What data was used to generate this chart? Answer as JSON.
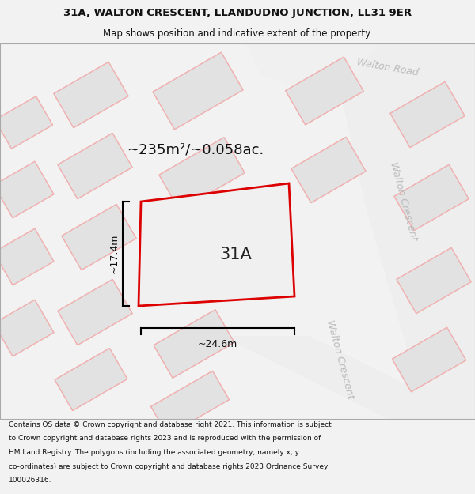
{
  "title_line1": "31A, WALTON CRESCENT, LLANDUDNO JUNCTION, LL31 9ER",
  "title_line2": "Map shows position and indicative extent of the property.",
  "footer_lines": [
    "Contains OS data © Crown copyright and database right 2021. This information is subject",
    "to Crown copyright and database rights 2023 and is reproduced with the permission of",
    "HM Land Registry. The polygons (including the associated geometry, namely x, y",
    "co-ordinates) are subject to Crown copyright and database rights 2023 Ordnance Survey",
    "100026316."
  ],
  "area_label": "~235m²/~0.058ac.",
  "plot_label": "31A",
  "width_label": "~24.6m",
  "height_label": "~17.4m",
  "road_label_walton_road": "Walton Road",
  "road_label_walton_crescent_1": "Walton Crescent",
  "road_label_walton_crescent_2": "Walton Crescent",
  "bg_color": "#f2f2f2",
  "map_bg": "#ffffff",
  "plot_fill": "#f0f0f0",
  "plot_edge": "#dd0000",
  "building_fill": "#e2e2e2",
  "building_edge_color": "#c8c8c8",
  "road_bg": "#f8f8f8",
  "red_outline_color": "#f5b0b0",
  "street_label_color": "#bbbbbb",
  "title_fontsize": 9.5,
  "subtitle_fontsize": 8.5,
  "footer_fontsize": 6.5,
  "area_fontsize": 13,
  "plot_label_fontsize": 15,
  "dim_fontsize": 9,
  "road_fontsize": 9
}
